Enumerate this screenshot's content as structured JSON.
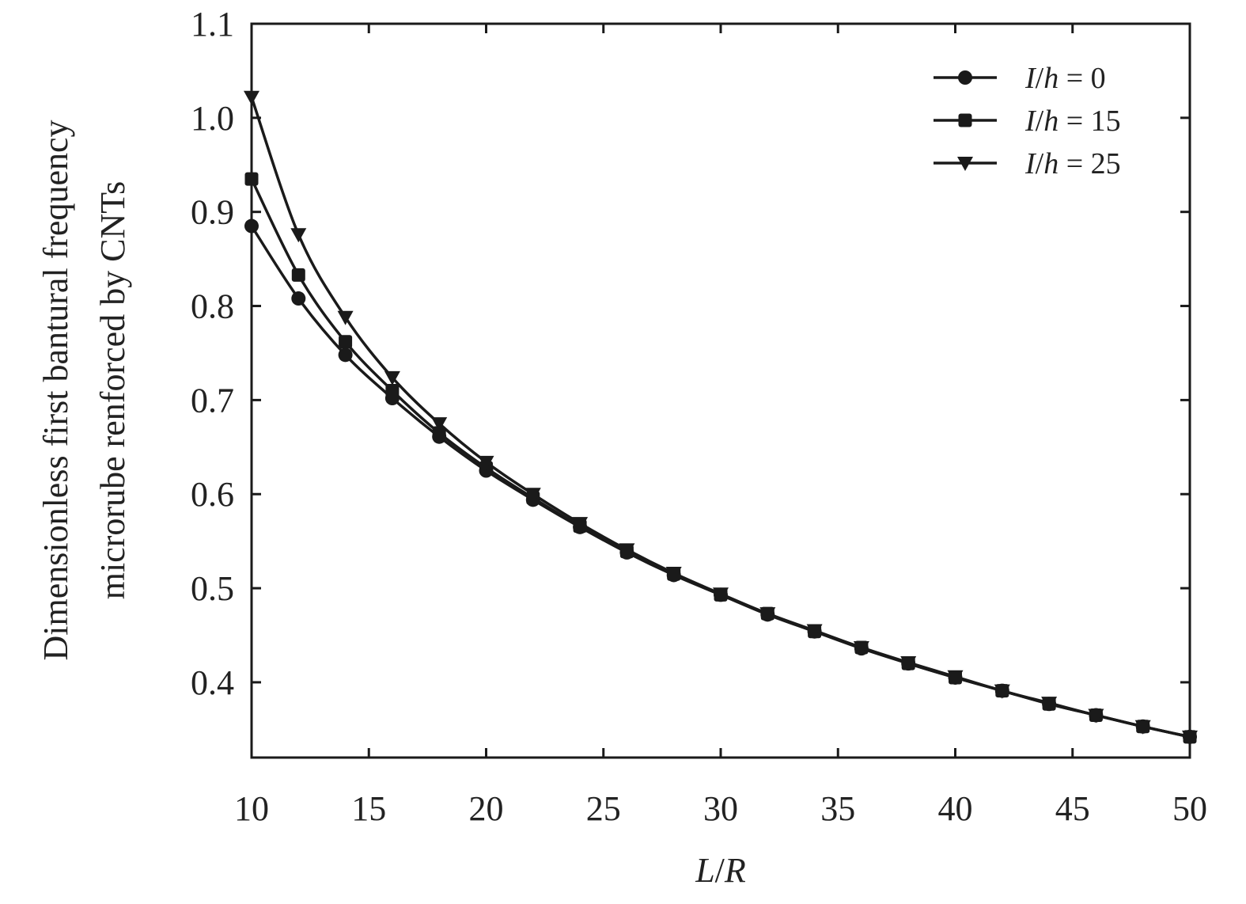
{
  "chart_data": {
    "type": "line",
    "xlabel": {
      "a": "L",
      "sep": "/",
      "b": "R"
    },
    "ylabel_lines": [
      "Dimensionless first bantural frequency",
      "microrube renforced by CNTs"
    ],
    "xlim": [
      10,
      50
    ],
    "ylim": [
      0.32,
      1.1
    ],
    "xticks": [
      10,
      15,
      20,
      25,
      30,
      35,
      40,
      45,
      50
    ],
    "yticks": [
      0.4,
      0.5,
      0.6,
      0.7,
      0.8,
      0.9,
      1.0,
      1.1
    ],
    "ytick_labels": [
      "0.4",
      "0.5",
      "0.6",
      "0.7",
      "0.8",
      "0.9",
      "1.0",
      "1.1"
    ],
    "legend_position": "top-right",
    "x": [
      10,
      12,
      14,
      16,
      18,
      20,
      22,
      24,
      26,
      28,
      30,
      32,
      34,
      36,
      38,
      40,
      42,
      44,
      46,
      48,
      50
    ],
    "series": [
      {
        "label": {
          "a": "I",
          "sep": "/",
          "b": "h",
          "eq": " = ",
          "val": "0"
        },
        "marker": "circle",
        "values": [
          0.885,
          0.808,
          0.748,
          0.702,
          0.661,
          0.625,
          0.594,
          0.565,
          0.538,
          0.514,
          0.493,
          0.472,
          0.454,
          0.436,
          0.42,
          0.405,
          0.391,
          0.377,
          0.365,
          0.353,
          0.342
        ]
      },
      {
        "label": {
          "a": "I",
          "sep": "/",
          "b": "h",
          "eq": " = ",
          "val": "15"
        },
        "marker": "square",
        "values": [
          0.935,
          0.833,
          0.762,
          0.71,
          0.665,
          0.628,
          0.596,
          0.566,
          0.539,
          0.515,
          0.493,
          0.473,
          0.454,
          0.437,
          0.42,
          0.405,
          0.391,
          0.377,
          0.365,
          0.353,
          0.342
        ]
      },
      {
        "label": {
          "a": "I",
          "sep": "/",
          "b": "h",
          "eq": " = ",
          "val": "25"
        },
        "marker": "triangle-down",
        "values": [
          1.022,
          0.876,
          0.788,
          0.724,
          0.675,
          0.634,
          0.6,
          0.569,
          0.541,
          0.516,
          0.494,
          0.473,
          0.455,
          0.437,
          0.421,
          0.406,
          0.391,
          0.378,
          0.365,
          0.353,
          0.342
        ]
      }
    ],
    "colors": {
      "line": "#1a1a1a",
      "axis": "#1a1a1a"
    }
  }
}
